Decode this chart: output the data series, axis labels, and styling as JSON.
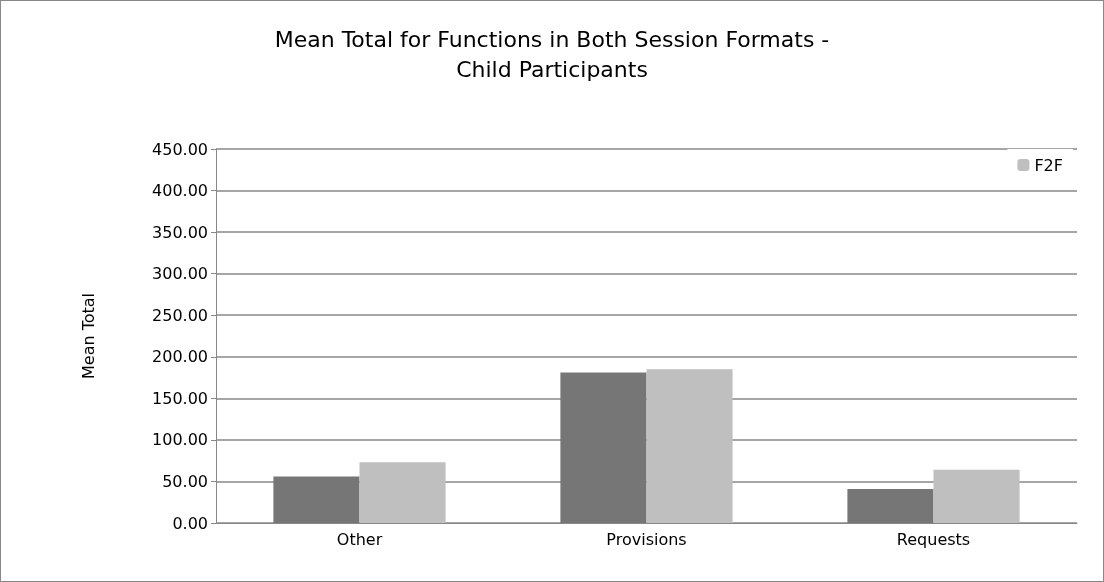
{
  "chart_data": {
    "type": "bar",
    "title": "Mean Total for Functions in Both Session Formats -\nChild Participants",
    "ylabel": "Mean Total",
    "categories": [
      "Other",
      "Provisions",
      "Requests"
    ],
    "series": [
      {
        "color": "#767676",
        "values": [
          56,
          181,
          41
        ]
      },
      {
        "name": "F2F",
        "color": "#bfbfbf",
        "values": [
          73,
          185,
          64
        ]
      }
    ],
    "ylim": [
      0,
      450
    ],
    "yticks": [
      {
        "value": 0,
        "label": "0.00"
      },
      {
        "value": 50,
        "label": "50.00"
      },
      {
        "value": 100,
        "label": "100.00"
      },
      {
        "value": 150,
        "label": "150.00"
      },
      {
        "value": 200,
        "label": "200.00"
      },
      {
        "value": 250,
        "label": "250.00"
      },
      {
        "value": 300,
        "label": "300.00"
      },
      {
        "value": 350,
        "label": "350.00"
      },
      {
        "value": 400,
        "label": "400.00"
      },
      {
        "value": 450,
        "label": "450.00"
      }
    ],
    "grid": "y",
    "legend": "top right"
  }
}
